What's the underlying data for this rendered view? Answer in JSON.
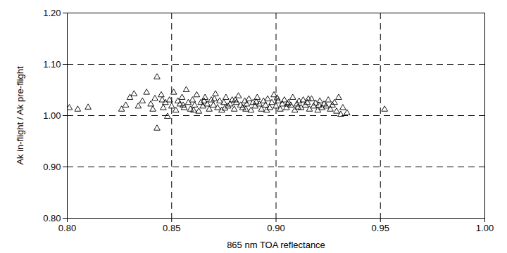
{
  "chart_data": {
    "type": "scatter",
    "xlabel": "865 nm TOA reflectance",
    "ylabel": "Ak in-flight / Ak pre-flight",
    "x": [
      0.801,
      0.805,
      0.81,
      0.826,
      0.828,
      0.83,
      0.832,
      0.834,
      0.836,
      0.838,
      0.84,
      0.841,
      0.842,
      0.843,
      0.843,
      0.845,
      0.8455,
      0.846,
      0.847,
      0.848,
      0.849,
      0.85,
      0.851,
      0.852,
      0.853,
      0.854,
      0.855,
      0.8555,
      0.856,
      0.857,
      0.858,
      0.859,
      0.86,
      0.8605,
      0.861,
      0.862,
      0.863,
      0.864,
      0.865,
      0.8655,
      0.866,
      0.867,
      0.868,
      0.869,
      0.87,
      0.8705,
      0.871,
      0.872,
      0.873,
      0.874,
      0.875,
      0.8755,
      0.876,
      0.877,
      0.878,
      0.879,
      0.88,
      0.8805,
      0.881,
      0.882,
      0.883,
      0.884,
      0.885,
      0.8855,
      0.886,
      0.887,
      0.888,
      0.889,
      0.89,
      0.8905,
      0.891,
      0.892,
      0.893,
      0.894,
      0.895,
      0.8955,
      0.896,
      0.897,
      0.898,
      0.899,
      0.9,
      0.9005,
      0.901,
      0.902,
      0.903,
      0.904,
      0.905,
      0.9055,
      0.906,
      0.907,
      0.908,
      0.909,
      0.91,
      0.9105,
      0.911,
      0.912,
      0.913,
      0.914,
      0.915,
      0.9155,
      0.916,
      0.917,
      0.918,
      0.919,
      0.92,
      0.9205,
      0.921,
      0.922,
      0.923,
      0.924,
      0.925,
      0.926,
      0.927,
      0.928,
      0.929,
      0.93,
      0.931,
      0.932,
      0.934,
      0.952
    ],
    "values": [
      1.015,
      1.012,
      1.016,
      1.012,
      1.02,
      1.035,
      1.042,
      1.018,
      1.028,
      1.045,
      1.022,
      1.012,
      1.033,
      1.075,
      0.975,
      1.04,
      1.03,
      1.015,
      1.025,
      0.998,
      1.03,
      1.018,
      1.045,
      1.01,
      1.028,
      1.022,
      1.035,
      1.02,
      1.015,
      1.05,
      1.025,
      1.012,
      1.03,
      1.01,
      1.02,
      1.04,
      1.008,
      1.025,
      1.018,
      1.028,
      1.035,
      1.022,
      1.012,
      1.03,
      1.02,
      1.032,
      1.042,
      1.015,
      1.028,
      1.01,
      1.025,
      1.014,
      1.035,
      1.018,
      1.022,
      1.03,
      1.012,
      1.03,
      1.025,
      1.038,
      1.02,
      1.015,
      1.028,
      1.012,
      1.022,
      1.032,
      1.01,
      1.025,
      1.018,
      1.026,
      1.035,
      1.022,
      1.012,
      1.028,
      1.02,
      1.01,
      1.032,
      1.015,
      1.025,
      1.04,
      1.018,
      1.034,
      1.028,
      1.012,
      1.022,
      1.03,
      1.015,
      1.022,
      1.025,
      1.02,
      1.035,
      1.01,
      1.022,
      1.016,
      1.028,
      1.015,
      1.03,
      1.02,
      1.025,
      1.032,
      1.012,
      1.032,
      1.018,
      1.024,
      1.01,
      1.02,
      1.028,
      1.015,
      1.022,
      1.018,
      1.03,
      1.012,
      1.02,
      1.025,
      1.008,
      1.035,
      1.002,
      1.015,
      1.005,
      1.012
    ],
    "color": "#000000",
    "marker": "triangle",
    "xlim": [
      0.8,
      1.0
    ],
    "xticks": [
      {
        "value": 0.8,
        "label": "0.80"
      },
      0.85,
      {
        "value": 0.9,
        "label": "0.90"
      },
      0.95,
      {
        "value": 1.0,
        "label": "1.00"
      }
    ],
    "ylim": [
      0.8,
      1.2
    ],
    "yticks": [
      {
        "value": 0.8,
        "label": "0.80"
      },
      {
        "value": 0.9,
        "label": "0.90"
      },
      {
        "value": 1.0,
        "label": "1.00"
      },
      {
        "value": 1.1,
        "label": "1.10"
      },
      {
        "value": 1.2,
        "label": "1.20"
      }
    ],
    "grid": true
  }
}
